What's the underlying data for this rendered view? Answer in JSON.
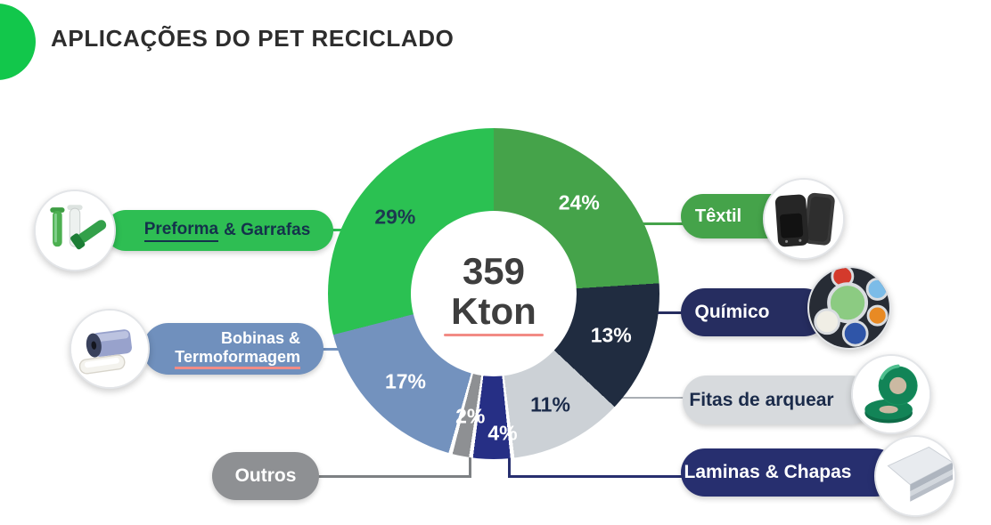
{
  "title": "APLICAÇÕES DO PET RECICLADO",
  "theme": {
    "background": "#FFFFFF",
    "title_color": "#2D2D2D",
    "header_dot_color": "#12C74B",
    "center_text_color": "#3E3E3E",
    "red_underline_color": "#F28B85"
  },
  "donut_center": {
    "value": "359",
    "unit": "Kton"
  },
  "chart_data": {
    "type": "pie",
    "variant": "donut",
    "title": "APLICAÇÕES DO PET RECICLADO",
    "center_label": "359 Kton",
    "total": 359,
    "unit": "Kton",
    "start_angle_deg": 0,
    "direction": "clockwise",
    "slices": [
      {
        "label": "Têxtil",
        "pct": 24,
        "color": "#45A34A",
        "pct_label_color": "#FFFFFF"
      },
      {
        "label": "Químico",
        "pct": 13,
        "color": "#202C40",
        "pct_label_color": "#FFFFFF"
      },
      {
        "label": "Fitas de arquear",
        "pct": 11,
        "color": "#CCD1D6",
        "pct_label_color": "#1B2B4A"
      },
      {
        "label": "Laminas & Chapas",
        "pct": 4,
        "color": "#262F85",
        "pct_label_color": "#FFFFFF",
        "gap_before": true,
        "label_r": 157,
        "label_dx": 10
      },
      {
        "label": "Outros",
        "pct": 2,
        "color": "#8E9093",
        "pct_label_color": "#FFFFFF",
        "gap_before": true
      },
      {
        "label": "Bobinas & Termoformagem",
        "pct": 17,
        "color": "#7392BE",
        "pct_label_color": "#FFFFFF",
        "gap_before": true
      },
      {
        "label": "Preforma & Garrafas",
        "pct": 29,
        "color": "#2BC152",
        "pct_label_color": "#1C3A50"
      }
    ]
  },
  "callouts": {
    "preforma": {
      "word_underlined": "Preforma",
      "rest": "& Garrafas",
      "bg": "#2EBE53",
      "fg": "#14324B",
      "image": "pet-preforms"
    },
    "bobinas": {
      "line1": "Bobinas &",
      "line2": "Termoformagem",
      "bg": "#7090BD",
      "fg": "#FFFFFF",
      "image": "film-roll-and-tray"
    },
    "outros": {
      "label": "Outros",
      "bg": "#8E9093",
      "fg": "#FFFFFF"
    },
    "textil": {
      "label": "Têxtil",
      "bg": "#45A34A",
      "fg": "#FFFFFF",
      "image": "car-floor-mats"
    },
    "quimico": {
      "label": "Químico",
      "bg": "#262D60",
      "fg": "#FFFFFF",
      "image": "paint-cans"
    },
    "fitas": {
      "label": "Fitas de arquear",
      "bg": "#D7DADD",
      "fg": "#1B2B4A",
      "image": "strapping-tape-rolls"
    },
    "laminas": {
      "label": "Laminas & Chapas",
      "bg": "#272F6F",
      "fg": "#FFFFFF",
      "image": "plastic-sheets"
    }
  },
  "connectors": {
    "preforma": "#2EBE53",
    "bobinas": "#7392BE",
    "outros": "#7D8083",
    "textil": "#45A34A",
    "quimico": "#262D60",
    "fitas": "#A9AEB4",
    "laminas": "#272F6F"
  }
}
